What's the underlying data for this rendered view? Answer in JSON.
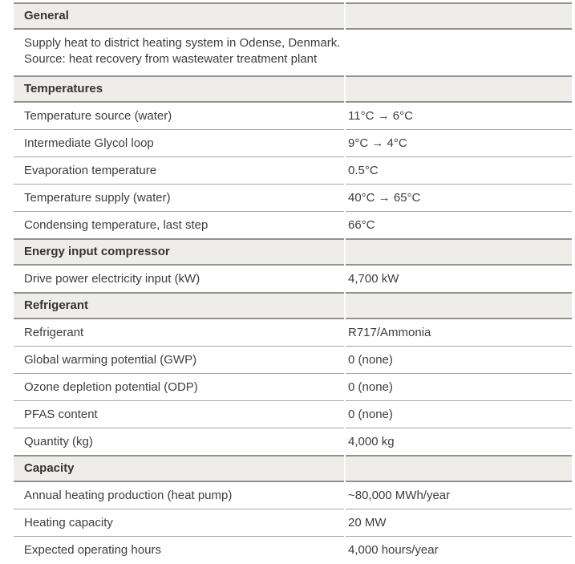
{
  "colors": {
    "header_background": "#eeedea",
    "rule": "#a8a6a2",
    "rule_strong": "#94928d",
    "text": "#3e3d3b"
  },
  "document": {
    "sections": [
      {
        "title": "General",
        "description_lines": [
          "Supply heat to district heating system in Odense, Denmark.",
          "Source: heat recovery from wastewater treatment plant"
        ],
        "rows": []
      },
      {
        "title": "Temperatures",
        "rows": [
          {
            "label": "Temperature source (water)",
            "value": "11°C → 6°C"
          },
          {
            "label": "Intermediate Glycol loop",
            "value": "9°C → 4°C"
          },
          {
            "label": "Evaporation temperature",
            "value": "0.5°C"
          },
          {
            "label": "Temperature supply (water)",
            "value": "40°C → 65°C"
          },
          {
            "label": "Condensing temperature, last step",
            "value": "66°C"
          }
        ]
      },
      {
        "title": "Energy input compressor",
        "rows": [
          {
            "label": "Drive power electricity input (kW)",
            "value": "4,700 kW"
          }
        ]
      },
      {
        "title": "Refrigerant",
        "rows": [
          {
            "label": "Refrigerant",
            "value": "R717/Ammonia"
          },
          {
            "label": "Global warming potential (GWP)",
            "value": "0 (none)"
          },
          {
            "label": "Ozone depletion potential (ODP)",
            "value": "0 (none)"
          },
          {
            "label": "PFAS content",
            "value": "0 (none)"
          },
          {
            "label": "Quantity (kg)",
            "value": "4,000 kg"
          }
        ]
      },
      {
        "title": "Capacity",
        "rows": [
          {
            "label": "Annual heating production (heat pump)",
            "value": "~80,000 MWh/year"
          },
          {
            "label": "Heating capacity",
            "value": "20 MW"
          },
          {
            "label": "Expected operating hours",
            "value": "4,000 hours/year"
          }
        ]
      }
    ]
  }
}
